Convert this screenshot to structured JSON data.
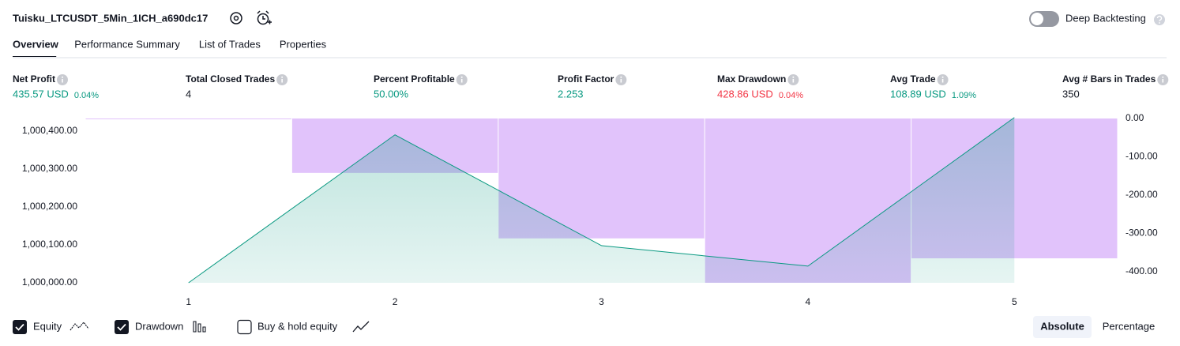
{
  "header": {
    "title": "Tuisku_LTCUSDT_5Min_1ICH_a690dc17",
    "deep_backtesting": "Deep Backtesting"
  },
  "tabs": [
    "Overview",
    "Performance Summary",
    "List of Trades",
    "Properties"
  ],
  "metrics": [
    {
      "label": "Net Profit",
      "value": "435.57 USD",
      "pct": "0.04%",
      "color": "#089981"
    },
    {
      "label": "Total Closed Trades",
      "value": "4",
      "color": "#131722"
    },
    {
      "label": "Percent Profitable",
      "value": "50.00%",
      "color": "#089981"
    },
    {
      "label": "Profit Factor",
      "value": "2.253",
      "color": "#089981"
    },
    {
      "label": "Max Drawdown",
      "value": "428.86 USD",
      "pct": "0.04%",
      "color": "#f23645"
    },
    {
      "label": "Avg Trade",
      "value": "108.89 USD",
      "pct": "1.09%",
      "color": "#089981"
    },
    {
      "label": "Avg # Bars in Trades",
      "value": "350",
      "color": "#131722"
    }
  ],
  "chart_data": {
    "type": "combo",
    "categories": [
      "1",
      "2",
      "3",
      "4",
      "5"
    ],
    "series": [
      {
        "name": "Equity",
        "type": "area",
        "color": "#089981",
        "values": [
          1000000,
          1000390,
          1000098,
          1000044,
          1000435.57
        ]
      },
      {
        "name": "Drawdown",
        "type": "bar",
        "axis": "y2",
        "color": "#e1c3fb",
        "values": [
          0,
          -142,
          -313,
          -428.86,
          -365
        ]
      }
    ],
    "ylim": [
      1000000,
      1000433
    ],
    "yticks": [
      {
        "value": 1000000,
        "label": "1,000,000.00"
      },
      {
        "value": 1000100,
        "label": "1,000,100.00"
      },
      {
        "value": 1000200,
        "label": "1,000,200.00"
      },
      {
        "value": 1000300,
        "label": "1,000,300.00"
      },
      {
        "value": 1000400,
        "label": "1,000,400.00"
      }
    ],
    "y2lim": [
      -429,
      0
    ],
    "y2ticks": [
      {
        "value": 0,
        "label": "0.00"
      },
      {
        "value": -100,
        "label": "-100.00"
      },
      {
        "value": -200,
        "label": "-200.00"
      },
      {
        "value": -300,
        "label": "-300.00"
      },
      {
        "value": -400,
        "label": "-400.00"
      }
    ],
    "grid": false
  },
  "footer": {
    "buy_hold": "Buy & hold equity",
    "modes": [
      "Absolute",
      "Percentage"
    ]
  }
}
